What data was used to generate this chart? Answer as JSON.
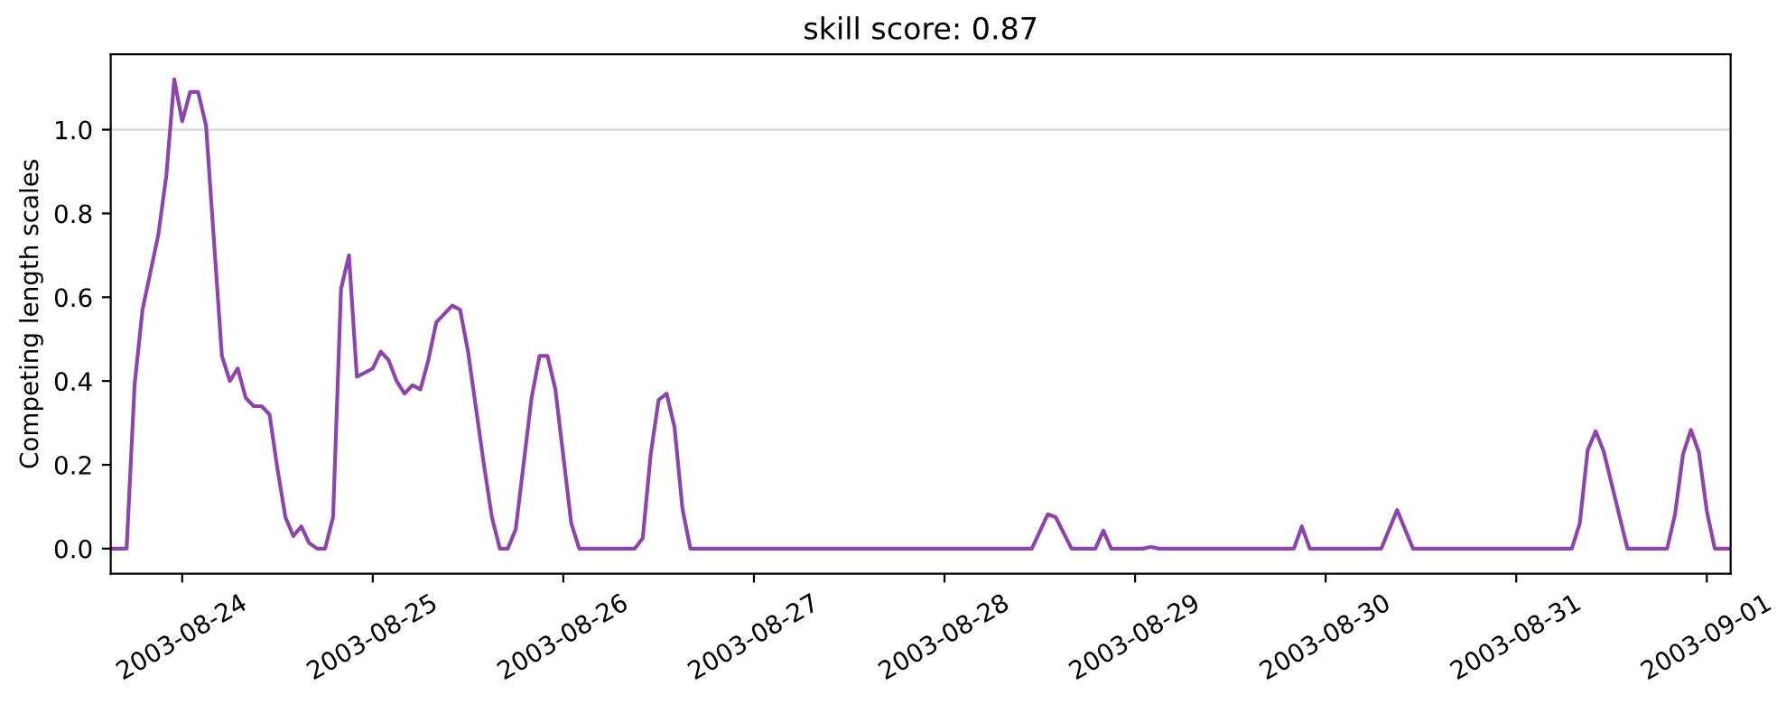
{
  "chart_data": {
    "type": "line",
    "title": "skill score: 0.87",
    "ylabel": "Competing length scales",
    "x": [
      "2003-08-23T15:00",
      "2003-08-23T17:00",
      "2003-08-23T18:00",
      "2003-08-23T19:00",
      "2003-08-23T21:00",
      "2003-08-23T22:00",
      "2003-08-23T23:00",
      "2003-08-24T00:00",
      "2003-08-24T01:00",
      "2003-08-24T02:00",
      "2003-08-24T03:00",
      "2003-08-24T05:00",
      "2003-08-24T06:00",
      "2003-08-24T07:00",
      "2003-08-24T08:00",
      "2003-08-24T09:00",
      "2003-08-24T10:00",
      "2003-08-24T11:00",
      "2003-08-24T12:00",
      "2003-08-24T13:00",
      "2003-08-24T14:00",
      "2003-08-24T15:00",
      "2003-08-24T16:00",
      "2003-08-24T17:00",
      "2003-08-24T18:00",
      "2003-08-24T19:00",
      "2003-08-24T20:00",
      "2003-08-24T21:00",
      "2003-08-24T22:00",
      "2003-08-25T00:00",
      "2003-08-25T01:00",
      "2003-08-25T02:00",
      "2003-08-25T03:00",
      "2003-08-25T04:00",
      "2003-08-25T05:00",
      "2003-08-25T06:00",
      "2003-08-25T07:00",
      "2003-08-25T08:00",
      "2003-08-25T10:00",
      "2003-08-25T11:00",
      "2003-08-25T12:00",
      "2003-08-25T14:00",
      "2003-08-25T15:00",
      "2003-08-25T16:00",
      "2003-08-25T17:00",
      "2003-08-25T18:00",
      "2003-08-25T20:00",
      "2003-08-25T21:00",
      "2003-08-25T22:00",
      "2003-08-25T23:00",
      "2003-08-26T01:00",
      "2003-08-26T02:00",
      "2003-08-26T09:00",
      "2003-08-26T10:00",
      "2003-08-26T11:00",
      "2003-08-26T12:00",
      "2003-08-26T13:00",
      "2003-08-26T14:00",
      "2003-08-26T15:00",
      "2003-08-26T16:00",
      "2003-08-28T11:00",
      "2003-08-28T13:00",
      "2003-08-28T14:00",
      "2003-08-28T16:00",
      "2003-08-28T19:00",
      "2003-08-28T20:00",
      "2003-08-28T21:00",
      "2003-08-29T01:00",
      "2003-08-29T02:00",
      "2003-08-29T03:00",
      "2003-08-29T20:00",
      "2003-08-29T21:00",
      "2003-08-29T22:00",
      "2003-08-30T07:00",
      "2003-08-30T09:00",
      "2003-08-30T11:00",
      "2003-08-31T07:00",
      "2003-08-31T08:00",
      "2003-08-31T09:00",
      "2003-08-31T10:00",
      "2003-08-31T11:00",
      "2003-08-31T14:00",
      "2003-08-31T19:00",
      "2003-08-31T20:00",
      "2003-08-31T21:00",
      "2003-08-31T22:00",
      "2003-08-31T23:00",
      "2003-09-01T00:00",
      "2003-09-01T01:00",
      "2003-09-01T03:00"
    ],
    "series": [
      {
        "color": "#8e44ad",
        "values": [
          0,
          0,
          0.39,
          0.57,
          0.75,
          0.89,
          1.12,
          1.02,
          1.09,
          1.09,
          1.01,
          0.46,
          0.4,
          0.43,
          0.36,
          0.34,
          0.34,
          0.32,
          0.19,
          0.075,
          0.03,
          0.053,
          0.013,
          0,
          0,
          0.075,
          0.62,
          0.7,
          0.41,
          0.43,
          0.47,
          0.45,
          0.4,
          0.37,
          0.39,
          0.38,
          0.45,
          0.54,
          0.58,
          0.57,
          0.47,
          0.2,
          0.075,
          0,
          0,
          0.046,
          0.36,
          0.46,
          0.46,
          0.38,
          0.06,
          0,
          0,
          0.025,
          0.225,
          0.355,
          0.37,
          0.29,
          0.095,
          0,
          0,
          0.082,
          0.075,
          0,
          0,
          0.043,
          0,
          0,
          0.004,
          0,
          0,
          0.053,
          0,
          0,
          0.092,
          0,
          0,
          0.06,
          0.235,
          0.28,
          0.233,
          0,
          0,
          0.082,
          0.225,
          0.283,
          0.23,
          0.09,
          0,
          0
        ]
      }
    ],
    "xlim": [
      "2003-08-23T15:00",
      "2003-09-01T03:00"
    ],
    "xticks": [
      "2003-08-24",
      "2003-08-25",
      "2003-08-26",
      "2003-08-27",
      "2003-08-28",
      "2003-08-29",
      "2003-08-30",
      "2003-08-31",
      "2003-09-01"
    ],
    "ylim": [
      -0.06,
      1.18
    ],
    "yticks": [
      {
        "value": 0,
        "label": "0.0"
      },
      {
        "value": 0.2,
        "label": "0.2"
      },
      {
        "value": 0.4,
        "label": "0.4"
      },
      {
        "value": 0.6,
        "label": "0.6"
      },
      {
        "value": 0.8,
        "label": "0.8"
      },
      {
        "value": 1,
        "label": "1.0"
      }
    ],
    "ref_lines": [
      {
        "axis": "y",
        "value": 1,
        "color": "#dddddd"
      }
    ],
    "grid": false,
    "marker": "none",
    "line_style": "solid"
  }
}
